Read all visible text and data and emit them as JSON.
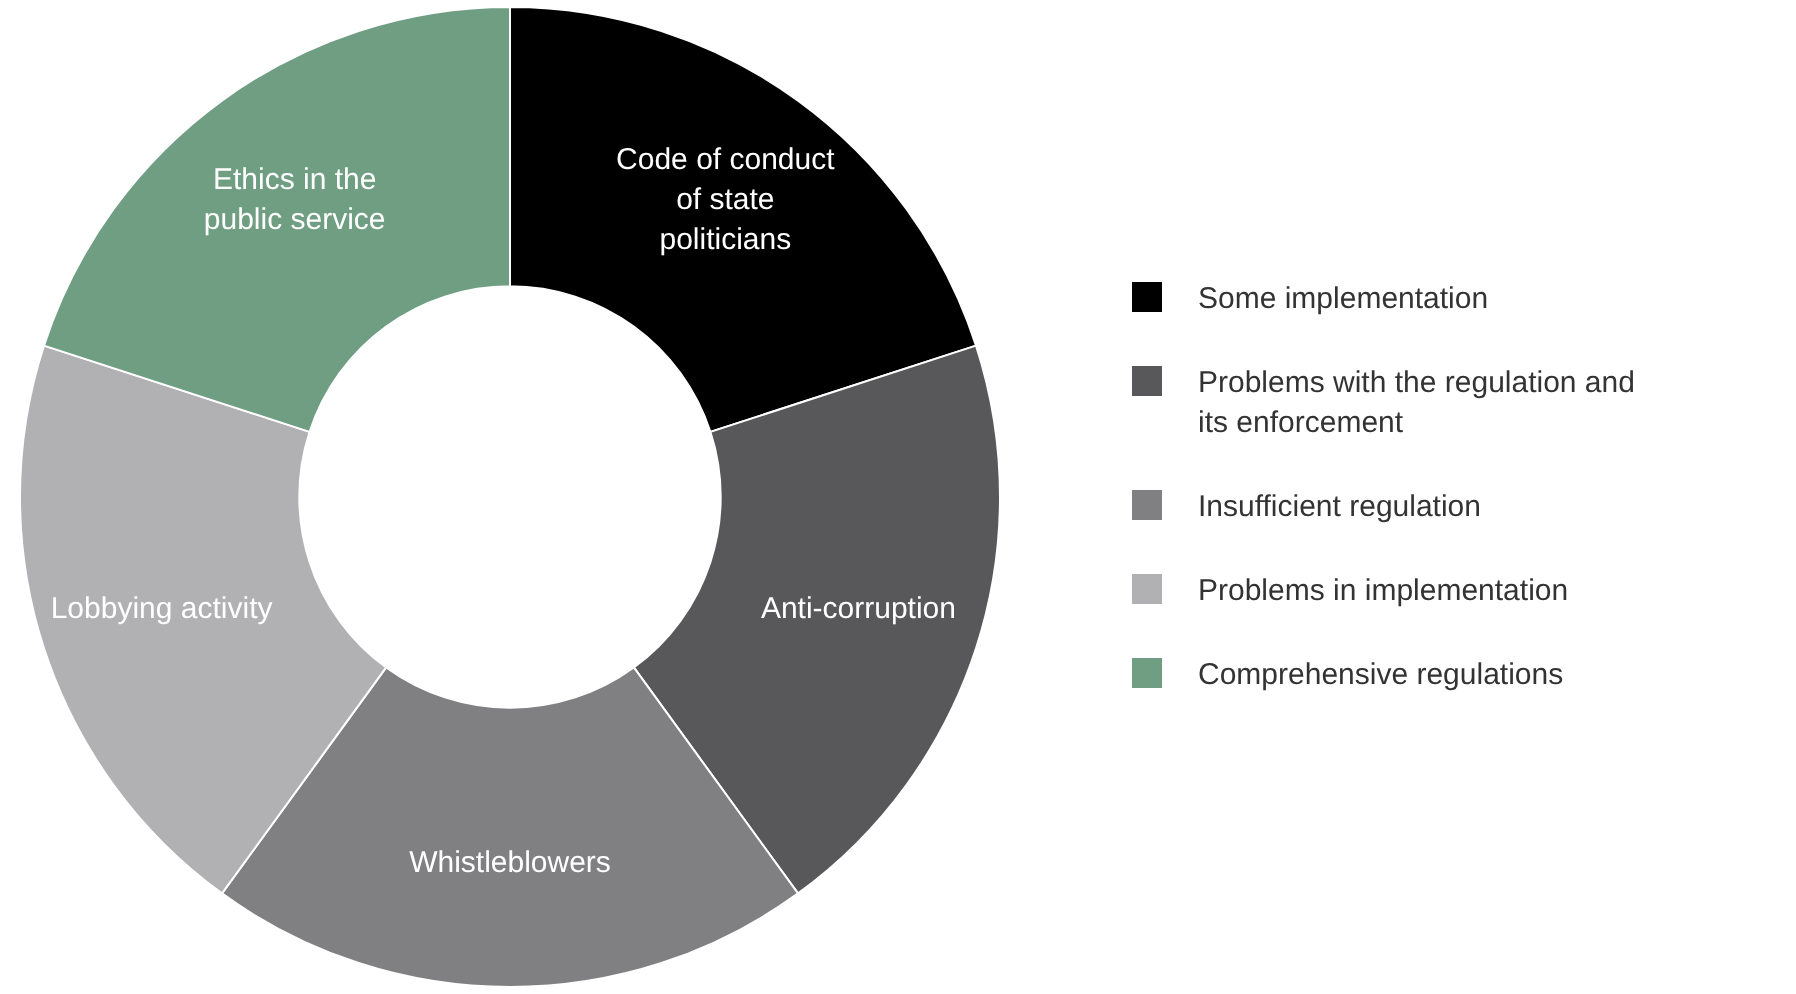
{
  "chart_data": {
    "type": "donut",
    "categories": [
      "Code of conduct of state politicians",
      "Anti-corruption",
      "Whistleblowers",
      "Lobbying activity",
      "Ethics in the public service"
    ],
    "values": [
      20,
      20,
      20,
      20,
      20
    ],
    "colors": [
      "#000000",
      "#58585a",
      "#808083",
      "#b1b1b4",
      "#6f9e83"
    ],
    "annotations": [
      "Some implementation",
      "Problems with the regulation and its enforcement",
      "Insufficient regulation",
      "Problems in implementation",
      "Comprehensive regulations"
    ]
  }
}
